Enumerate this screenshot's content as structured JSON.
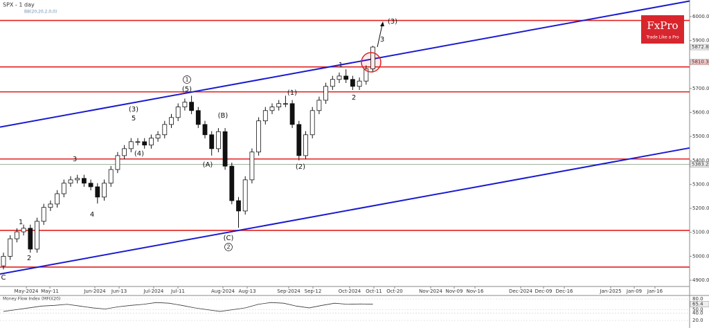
{
  "chart_data": {
    "type": "candlestick",
    "title": "SPX - 1 day",
    "indicator": "BB(20,20,2,0,0)",
    "logo": {
      "brand": "FxPro",
      "tagline": "Trade Like a Pro"
    },
    "ylim": [
      4900,
      6000
    ],
    "yticks": [
      {
        "value": 4900,
        "label": "4900.0"
      },
      {
        "value": 5000,
        "label": "5000.0"
      },
      {
        "value": 5100,
        "label": "5100.0"
      },
      {
        "value": 5200,
        "label": "5200.0"
      },
      {
        "value": 5300,
        "label": "5300.0"
      },
      {
        "value": 5400,
        "label": "5400.0"
      },
      {
        "value": 5500,
        "label": "5500.0"
      },
      {
        "value": 5600,
        "label": "5600.0"
      },
      {
        "value": 5700,
        "label": "5700.0"
      },
      {
        "value": 5900,
        "label": "5900.0"
      },
      {
        "value": 6000,
        "label": "6000.0"
      }
    ],
    "x_labels": [
      "May-2024",
      "May-11",
      "Jun-2024",
      "Jun-13",
      "Jul-2024",
      "Jul-11",
      "Aug-2024",
      "Aug-13",
      "Sep-2024",
      "Sep-12",
      "Oct-2024",
      "Oct-11",
      "Oct-20",
      "Nov-2024",
      "Nov-09",
      "Nov-16",
      "Dec-2024",
      "Dec-09",
      "Dec-16",
      "Jan-2025",
      "Jan-09",
      "Jan-16"
    ],
    "open": [
      4960,
      5000,
      5073,
      5102,
      5117,
      5030,
      5146,
      5204,
      5218,
      5261,
      5305,
      5319,
      5325,
      5305,
      5290,
      5247,
      5305,
      5362,
      5420,
      5449,
      5478,
      5478,
      5464,
      5493,
      5507,
      5550,
      5579,
      5623,
      5643,
      5608,
      5550,
      5507,
      5449,
      5520,
      5376,
      5232,
      5189,
      5319,
      5435,
      5565,
      5608,
      5623,
      5637,
      5637,
      5550,
      5420,
      5507,
      5608,
      5651,
      5709,
      5738,
      5752,
      5738,
      5709,
      5731,
      5782
    ],
    "high": [
      5015,
      5088,
      5117,
      5132,
      5132,
      5161,
      5219,
      5233,
      5276,
      5320,
      5334,
      5340,
      5340,
      5320,
      5305,
      5320,
      5377,
      5435,
      5464,
      5493,
      5493,
      5493,
      5508,
      5522,
      5565,
      5594,
      5638,
      5658,
      5670,
      5623,
      5565,
      5522,
      5535,
      5535,
      5391,
      5247,
      5334,
      5450,
      5580,
      5623,
      5638,
      5652,
      5670,
      5652,
      5565,
      5522,
      5623,
      5666,
      5724,
      5753,
      5767,
      5780,
      5753,
      5746,
      5797,
      5878
    ],
    "low": [
      4945,
      4985,
      5058,
      5087,
      5015,
      5015,
      5131,
      5189,
      5203,
      5246,
      5290,
      5304,
      5290,
      5275,
      5220,
      5232,
      5290,
      5347,
      5405,
      5434,
      5463,
      5449,
      5449,
      5478,
      5492,
      5535,
      5564,
      5608,
      5593,
      5535,
      5492,
      5420,
      5434,
      5361,
      5217,
      5119,
      5174,
      5304,
      5420,
      5550,
      5593,
      5608,
      5622,
      5535,
      5400,
      5405,
      5492,
      5593,
      5636,
      5694,
      5723,
      5723,
      5694,
      5694,
      5716,
      5767
    ],
    "close": [
      5000,
      5073,
      5102,
      5117,
      5030,
      5146,
      5204,
      5218,
      5261,
      5305,
      5319,
      5325,
      5305,
      5290,
      5247,
      5305,
      5362,
      5420,
      5449,
      5478,
      5478,
      5464,
      5493,
      5507,
      5550,
      5579,
      5623,
      5643,
      5608,
      5550,
      5507,
      5449,
      5520,
      5376,
      5232,
      5189,
      5319,
      5435,
      5565,
      5608,
      5623,
      5637,
      5637,
      5550,
      5420,
      5507,
      5608,
      5651,
      5709,
      5738,
      5752,
      5738,
      5709,
      5731,
      5782,
      5873
    ],
    "levels": [
      5984,
      5790,
      5686,
      5406,
      5108,
      4955
    ],
    "support_line": 5383.2,
    "price_tags": [
      5872.8,
      5810.3
    ],
    "channels": [
      {
        "start": 5539,
        "end": 6065
      },
      {
        "start": 4926,
        "end": 5452
      }
    ],
    "wave_labels": [
      "C",
      "1",
      "2",
      "3",
      "4",
      "(3)",
      "5",
      "(4)",
      "(5)",
      "(A)",
      "(B)",
      "(C)",
      "(1)",
      "(2)",
      "1",
      "2",
      "3",
      "(3)",
      "1",
      "2"
    ],
    "mfi": {
      "title": "Money Flow Index (MFI)(20)",
      "ylim": [
        20,
        80
      ],
      "yticks": [
        {
          "value": 80,
          "label": "80.0"
        },
        {
          "value": 50,
          "label": "50.0"
        },
        {
          "value": 40,
          "label": "40.0"
        },
        {
          "value": 20,
          "label": "20.0"
        }
      ],
      "values": [
        45,
        50,
        55,
        60,
        62,
        65,
        60,
        55,
        52,
        58,
        62,
        65,
        70,
        68,
        62,
        55,
        50,
        45,
        50,
        55,
        65,
        70,
        68,
        60,
        55,
        62,
        68,
        65,
        66,
        65.4
      ],
      "last": 65.4
    }
  }
}
